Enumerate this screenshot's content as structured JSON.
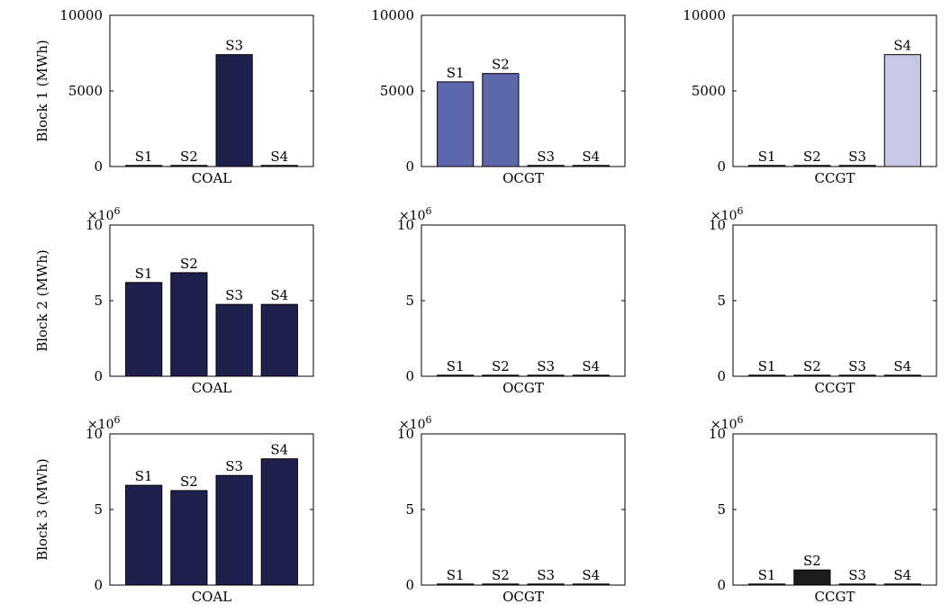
{
  "chart_data": [
    {
      "type": "bar",
      "ylabel": "Block 1 (MWh)",
      "xlabel": "COAL",
      "categories": [
        "S1",
        "S2",
        "S3",
        "S4"
      ],
      "values": [
        0,
        0,
        7400,
        0
      ],
      "ylim": [
        0,
        10000
      ],
      "yticks": [
        "0",
        "5000",
        "10000"
      ],
      "exponent": "",
      "color": "#20204f"
    },
    {
      "type": "bar",
      "ylabel": "",
      "xlabel": "OCGT",
      "categories": [
        "S1",
        "S2",
        "S3",
        "S4"
      ],
      "values": [
        5600,
        6150,
        0,
        0
      ],
      "ylim": [
        0,
        10000
      ],
      "yticks": [
        "0",
        "5000",
        "10000"
      ],
      "exponent": "",
      "color": "#6068ad"
    },
    {
      "type": "bar",
      "ylabel": "",
      "xlabel": "CCGT",
      "categories": [
        "S1",
        "S2",
        "S3",
        "S4"
      ],
      "values": [
        0,
        0,
        0,
        7400
      ],
      "ylim": [
        0,
        10000
      ],
      "yticks": [
        "0",
        "5000",
        "10000"
      ],
      "exponent": "",
      "color": "#c8c8e6"
    },
    {
      "type": "bar",
      "ylabel": "Block 2 (MWh)",
      "xlabel": "COAL",
      "categories": [
        "S1",
        "S2",
        "S3",
        "S4"
      ],
      "values": [
        6.2,
        6.85,
        4.75,
        4.75
      ],
      "ylim": [
        0,
        10
      ],
      "yticks": [
        "0",
        "5",
        "10"
      ],
      "exponent": "×10^6",
      "color": "#20204f"
    },
    {
      "type": "bar",
      "ylabel": "",
      "xlabel": "OCGT",
      "categories": [
        "S1",
        "S2",
        "S3",
        "S4"
      ],
      "values": [
        0,
        0,
        0,
        0
      ],
      "ylim": [
        0,
        10
      ],
      "yticks": [
        "0",
        "5",
        "10"
      ],
      "exponent": "×10^6",
      "color": "#20204f"
    },
    {
      "type": "bar",
      "ylabel": "",
      "xlabel": "CCGT",
      "categories": [
        "S1",
        "S2",
        "S3",
        "S4"
      ],
      "values": [
        0,
        0,
        0,
        0
      ],
      "ylim": [
        0,
        10
      ],
      "yticks": [
        "0",
        "5",
        "10"
      ],
      "exponent": "×10^6",
      "color": "#20204f"
    },
    {
      "type": "bar",
      "ylabel": "Block 3 (MWh)",
      "xlabel": "COAL",
      "categories": [
        "S1",
        "S2",
        "S3",
        "S4"
      ],
      "values": [
        6.6,
        6.25,
        7.25,
        8.35
      ],
      "ylim": [
        0,
        10
      ],
      "yticks": [
        "0",
        "5",
        "10"
      ],
      "exponent": "×10^6",
      "color": "#20204f"
    },
    {
      "type": "bar",
      "ylabel": "",
      "xlabel": "OCGT",
      "categories": [
        "S1",
        "S2",
        "S3",
        "S4"
      ],
      "values": [
        0,
        0,
        0,
        0
      ],
      "ylim": [
        0,
        10
      ],
      "yticks": [
        "0",
        "5",
        "10"
      ],
      "exponent": "×10^6",
      "color": "#20204f"
    },
    {
      "type": "bar",
      "ylabel": "",
      "xlabel": "CCGT",
      "categories": [
        "S1",
        "S2",
        "S3",
        "S4"
      ],
      "values": [
        0,
        1.0,
        0,
        0
      ],
      "ylim": [
        0,
        10
      ],
      "yticks": [
        "0",
        "5",
        "10"
      ],
      "exponent": "×10^6",
      "color": "#1c1c1c"
    }
  ]
}
